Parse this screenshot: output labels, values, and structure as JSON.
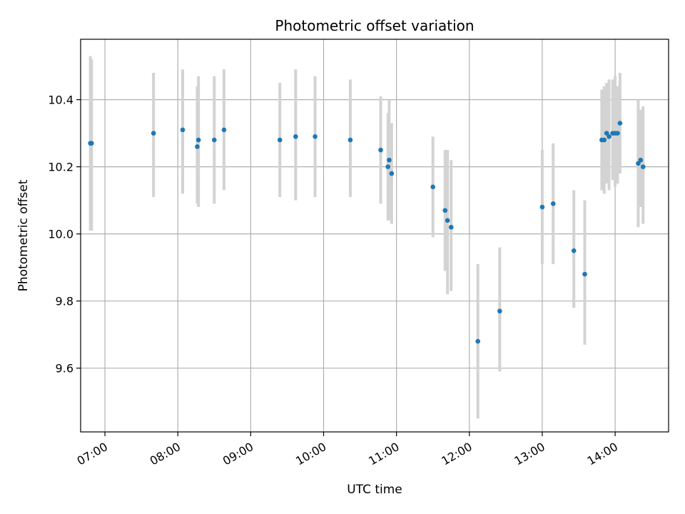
{
  "chart_data": {
    "type": "scatter",
    "title": "Photometric offset variation",
    "xlabel": "UTC time",
    "ylabel": "Photometric offset",
    "grid": true,
    "x_unit": "HH:MM",
    "xlim": [
      "06:40",
      "14:44"
    ],
    "ylim": [
      9.41,
      10.58
    ],
    "x_ticks": [
      "07:00",
      "08:00",
      "09:00",
      "10:00",
      "11:00",
      "12:00",
      "13:00",
      "14:00"
    ],
    "y_ticks": [
      9.6,
      9.8,
      10.0,
      10.2,
      10.4
    ],
    "y_tick_labels": [
      "9.6",
      "9.8",
      "10.0",
      "10.2",
      "10.4"
    ],
    "colors": {
      "marker": "#1f77b4",
      "errorbar": "#d3d3d3",
      "grid": "#b0b0b0",
      "axes": "#000000"
    },
    "series": [
      {
        "x": [
          "06:48",
          "06:49",
          "07:40",
          "08:04",
          "08:16",
          "08:17",
          "08:30",
          "08:38",
          "09:24",
          "09:37",
          "09:53",
          "10:22",
          "10:47",
          "10:53",
          "10:54",
          "10:56",
          "11:30",
          "11:40",
          "11:42",
          "11:45",
          "12:07",
          "12:25",
          "13:00",
          "13:09",
          "13:26",
          "13:35",
          "13:49",
          "13:51",
          "13:53",
          "13:55",
          "13:58",
          "14:00",
          "14:02",
          "14:04",
          "14:19",
          "14:21",
          "14:23"
        ],
        "y": [
          10.27,
          10.27,
          10.3,
          10.31,
          10.26,
          10.28,
          10.28,
          10.31,
          10.28,
          10.29,
          10.29,
          10.28,
          10.25,
          10.2,
          10.22,
          10.18,
          10.14,
          10.07,
          10.04,
          10.02,
          9.68,
          9.77,
          10.08,
          10.09,
          9.95,
          9.88,
          10.28,
          10.28,
          10.3,
          10.29,
          10.3,
          10.3,
          10.3,
          10.33,
          10.21,
          10.22,
          10.2
        ],
        "yerr_low": [
          10.01,
          10.01,
          10.11,
          10.12,
          10.09,
          10.08,
          10.09,
          10.13,
          10.11,
          10.1,
          10.11,
          10.11,
          10.09,
          10.04,
          10.04,
          10.03,
          9.99,
          9.89,
          9.82,
          9.83,
          9.45,
          9.59,
          9.91,
          9.91,
          9.78,
          9.67,
          10.13,
          10.12,
          10.15,
          10.13,
          10.16,
          10.14,
          10.15,
          10.18,
          10.02,
          10.08,
          10.03
        ],
        "yerr_high": [
          10.53,
          10.52,
          10.48,
          10.49,
          10.44,
          10.47,
          10.47,
          10.49,
          10.45,
          10.49,
          10.47,
          10.46,
          10.41,
          10.36,
          10.4,
          10.33,
          10.29,
          10.25,
          10.25,
          10.22,
          9.91,
          9.96,
          10.25,
          10.27,
          10.13,
          10.1,
          10.43,
          10.44,
          10.45,
          10.46,
          10.46,
          10.47,
          10.44,
          10.48,
          10.4,
          10.37,
          10.38
        ]
      }
    ]
  }
}
